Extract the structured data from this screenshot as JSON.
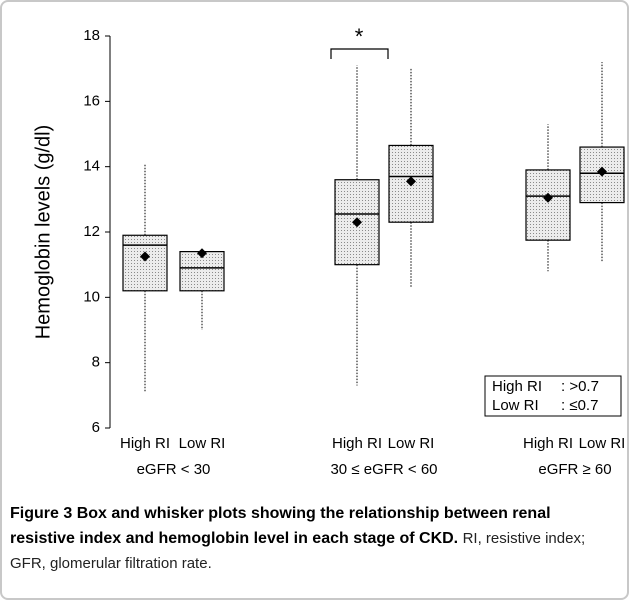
{
  "chart_data": {
    "type": "box",
    "y_label": "Hemoglobin levels (g/dl)",
    "ylim": [
      6,
      18
    ],
    "yticks": [
      6,
      8,
      10,
      12,
      14,
      16,
      18
    ],
    "categories": [
      "High RI",
      "Low RI",
      "High RI",
      "Low RI",
      "High RI",
      "Low RI"
    ],
    "groups": [
      "eGFR < 30",
      "30 ≤ eGFR < 60",
      "eGFR ≥ 60"
    ],
    "whisker_low": [
      7.1,
      9.0,
      7.3,
      10.3,
      10.8,
      11.1
    ],
    "q1": [
      10.2,
      10.2,
      11.0,
      12.3,
      11.75,
      12.9
    ],
    "median": [
      11.6,
      10.9,
      12.55,
      13.7,
      13.1,
      13.8
    ],
    "q3": [
      11.9,
      11.4,
      13.6,
      14.65,
      13.9,
      14.6
    ],
    "whisker_high": [
      14.1,
      11.4,
      17.1,
      17.0,
      15.3,
      17.2
    ],
    "mean": [
      11.25,
      11.35,
      12.3,
      13.55,
      13.05,
      13.85
    ],
    "box_color": "#d4d4d4",
    "mean_color": "#000000",
    "annotation": "*",
    "legend": [
      {
        "name": "High RI",
        "desc": ": >0.7"
      },
      {
        "name": "Low RI",
        "desc": ": ≤0.7"
      }
    ]
  },
  "caption": {
    "label": "Figure 3",
    "title": "Box and whisker plots showing the relationship between renal resistive index and hemoglobin level in each stage of CKD.",
    "text": "RI, resistive index; GFR, glomerular filtration rate."
  }
}
